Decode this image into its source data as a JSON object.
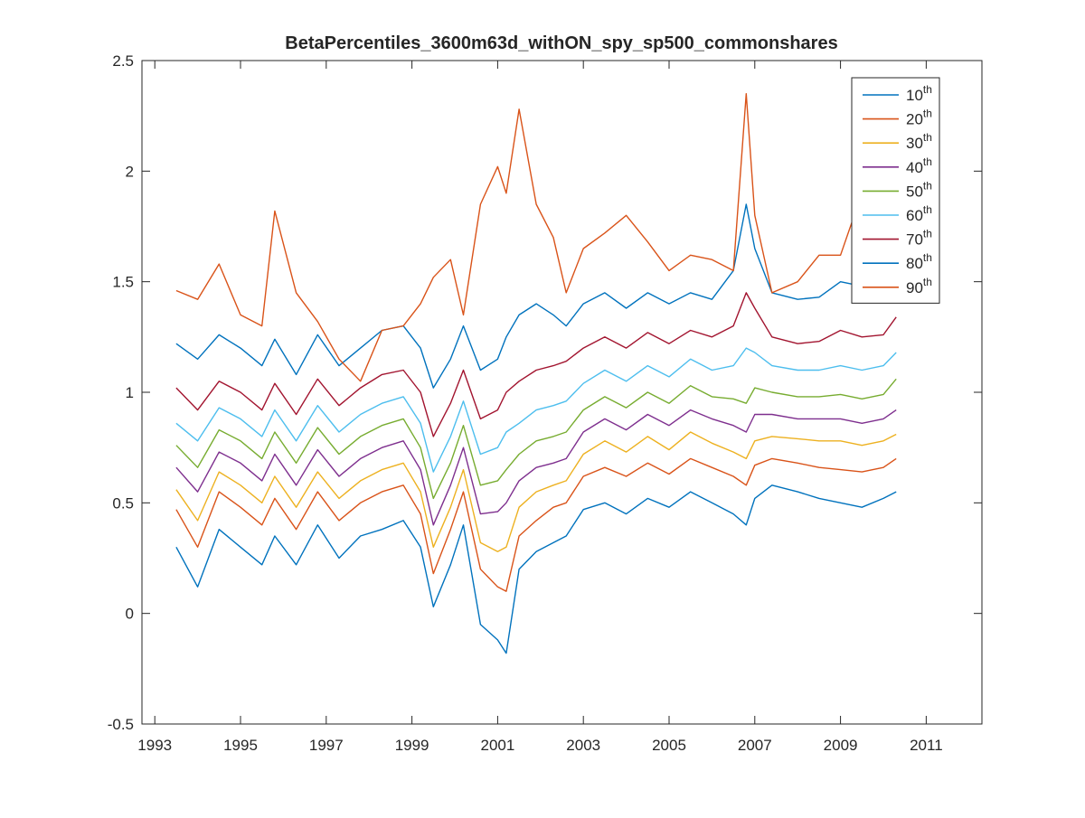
{
  "chart_data": {
    "type": "line",
    "title": "BetaPercentiles_3600m63d_withON_spy_sp500_commonshares",
    "xlabel": "",
    "ylabel": "",
    "xlim": [
      1992.7,
      2012.3
    ],
    "ylim": [
      -0.5,
      2.5
    ],
    "xticks": [
      1993,
      1995,
      1997,
      1999,
      2001,
      2003,
      2005,
      2007,
      2009,
      2011
    ],
    "xtick_labels": [
      "1993",
      "1995",
      "1997",
      "1999",
      "2001",
      "2003",
      "2005",
      "2007",
      "2009",
      "2011"
    ],
    "yticks": [
      -0.5,
      0,
      0.5,
      1,
      1.5,
      2,
      2.5
    ],
    "ytick_labels": [
      "-0.5",
      "0",
      "0.5",
      "1",
      "1.5",
      "2",
      "2.5"
    ],
    "grid": false,
    "legend_position": "top-right",
    "x": [
      1993.5,
      1994.0,
      1994.5,
      1995.0,
      1995.5,
      1995.8,
      1996.3,
      1996.8,
      1997.3,
      1997.8,
      1998.3,
      1998.8,
      1999.2,
      1999.5,
      1999.9,
      2000.2,
      2000.6,
      2001.0,
      2001.2,
      2001.5,
      2001.9,
      2002.3,
      2002.6,
      2003.0,
      2003.5,
      2004.0,
      2004.5,
      2005.0,
      2005.5,
      2006.0,
      2006.5,
      2006.8,
      2007.0,
      2007.4,
      2008.0,
      2008.5,
      2009.0,
      2009.5,
      2010.0,
      2010.3
    ],
    "series": [
      {
        "name": "10th",
        "color": "#0072BD",
        "values": [
          0.3,
          0.12,
          0.38,
          0.3,
          0.22,
          0.35,
          0.22,
          0.4,
          0.25,
          0.35,
          0.38,
          0.42,
          0.3,
          0.03,
          0.22,
          0.4,
          -0.05,
          -0.12,
          -0.18,
          0.2,
          0.28,
          0.32,
          0.35,
          0.47,
          0.5,
          0.45,
          0.52,
          0.48,
          0.55,
          0.5,
          0.45,
          0.4,
          0.52,
          0.58,
          0.55,
          0.52,
          0.5,
          0.48,
          0.52,
          0.55
        ]
      },
      {
        "name": "20th",
        "color": "#D95319",
        "values": [
          0.47,
          0.3,
          0.55,
          0.48,
          0.4,
          0.52,
          0.38,
          0.55,
          0.42,
          0.5,
          0.55,
          0.58,
          0.45,
          0.18,
          0.38,
          0.55,
          0.2,
          0.12,
          0.1,
          0.35,
          0.42,
          0.48,
          0.5,
          0.62,
          0.66,
          0.62,
          0.68,
          0.63,
          0.7,
          0.66,
          0.62,
          0.58,
          0.67,
          0.7,
          0.68,
          0.66,
          0.65,
          0.64,
          0.66,
          0.7
        ]
      },
      {
        "name": "30th",
        "color": "#EDB120",
        "values": [
          0.56,
          0.42,
          0.64,
          0.58,
          0.5,
          0.62,
          0.48,
          0.64,
          0.52,
          0.6,
          0.65,
          0.68,
          0.55,
          0.3,
          0.48,
          0.65,
          0.32,
          0.28,
          0.3,
          0.48,
          0.55,
          0.58,
          0.6,
          0.72,
          0.78,
          0.73,
          0.8,
          0.74,
          0.82,
          0.77,
          0.73,
          0.7,
          0.78,
          0.8,
          0.79,
          0.78,
          0.78,
          0.76,
          0.78,
          0.81
        ]
      },
      {
        "name": "40th",
        "color": "#7E2F8E",
        "values": [
          0.66,
          0.55,
          0.73,
          0.68,
          0.6,
          0.72,
          0.58,
          0.74,
          0.62,
          0.7,
          0.75,
          0.78,
          0.65,
          0.4,
          0.58,
          0.75,
          0.45,
          0.46,
          0.5,
          0.6,
          0.66,
          0.68,
          0.7,
          0.82,
          0.88,
          0.83,
          0.9,
          0.85,
          0.92,
          0.88,
          0.85,
          0.82,
          0.9,
          0.9,
          0.88,
          0.88,
          0.88,
          0.86,
          0.88,
          0.92
        ]
      },
      {
        "name": "50th",
        "color": "#77AC30",
        "values": [
          0.76,
          0.66,
          0.83,
          0.78,
          0.7,
          0.82,
          0.68,
          0.84,
          0.72,
          0.8,
          0.85,
          0.88,
          0.75,
          0.52,
          0.68,
          0.85,
          0.58,
          0.6,
          0.65,
          0.72,
          0.78,
          0.8,
          0.82,
          0.92,
          0.98,
          0.93,
          1.0,
          0.95,
          1.03,
          0.98,
          0.97,
          0.95,
          1.02,
          1.0,
          0.98,
          0.98,
          0.99,
          0.97,
          0.99,
          1.06
        ]
      },
      {
        "name": "60th",
        "color": "#4DBEEE",
        "values": [
          0.86,
          0.78,
          0.93,
          0.88,
          0.8,
          0.92,
          0.78,
          0.94,
          0.82,
          0.9,
          0.95,
          0.98,
          0.86,
          0.64,
          0.8,
          0.96,
          0.72,
          0.75,
          0.82,
          0.86,
          0.92,
          0.94,
          0.96,
          1.04,
          1.1,
          1.05,
          1.12,
          1.07,
          1.15,
          1.1,
          1.12,
          1.2,
          1.18,
          1.12,
          1.1,
          1.1,
          1.12,
          1.1,
          1.12,
          1.18
        ]
      },
      {
        "name": "70th",
        "color": "#A2142F",
        "values": [
          1.02,
          0.92,
          1.05,
          1.0,
          0.92,
          1.04,
          0.9,
          1.06,
          0.94,
          1.02,
          1.08,
          1.1,
          1.0,
          0.8,
          0.95,
          1.1,
          0.88,
          0.92,
          1.0,
          1.05,
          1.1,
          1.12,
          1.14,
          1.2,
          1.25,
          1.2,
          1.27,
          1.22,
          1.28,
          1.25,
          1.3,
          1.45,
          1.38,
          1.25,
          1.22,
          1.23,
          1.28,
          1.25,
          1.26,
          1.34
        ]
      },
      {
        "name": "80th",
        "color": "#0072BD",
        "values": [
          1.22,
          1.15,
          1.26,
          1.2,
          1.12,
          1.24,
          1.08,
          1.26,
          1.12,
          1.2,
          1.28,
          1.3,
          1.2,
          1.02,
          1.15,
          1.3,
          1.1,
          1.15,
          1.25,
          1.35,
          1.4,
          1.35,
          1.3,
          1.4,
          1.45,
          1.38,
          1.45,
          1.4,
          1.45,
          1.42,
          1.55,
          1.85,
          1.65,
          1.45,
          1.42,
          1.43,
          1.5,
          1.48,
          1.47,
          1.55
        ]
      },
      {
        "name": "90th",
        "color": "#D95319",
        "values": [
          1.46,
          1.42,
          1.58,
          1.35,
          1.3,
          1.82,
          1.45,
          1.32,
          1.15,
          1.05,
          1.28,
          1.3,
          1.4,
          1.52,
          1.6,
          1.35,
          1.85,
          2.02,
          1.9,
          2.28,
          1.85,
          1.7,
          1.45,
          1.65,
          1.72,
          1.8,
          1.68,
          1.55,
          1.62,
          1.6,
          1.55,
          2.35,
          1.8,
          1.45,
          1.5,
          1.62,
          1.62,
          1.9,
          1.7,
          1.78
        ]
      }
    ]
  }
}
